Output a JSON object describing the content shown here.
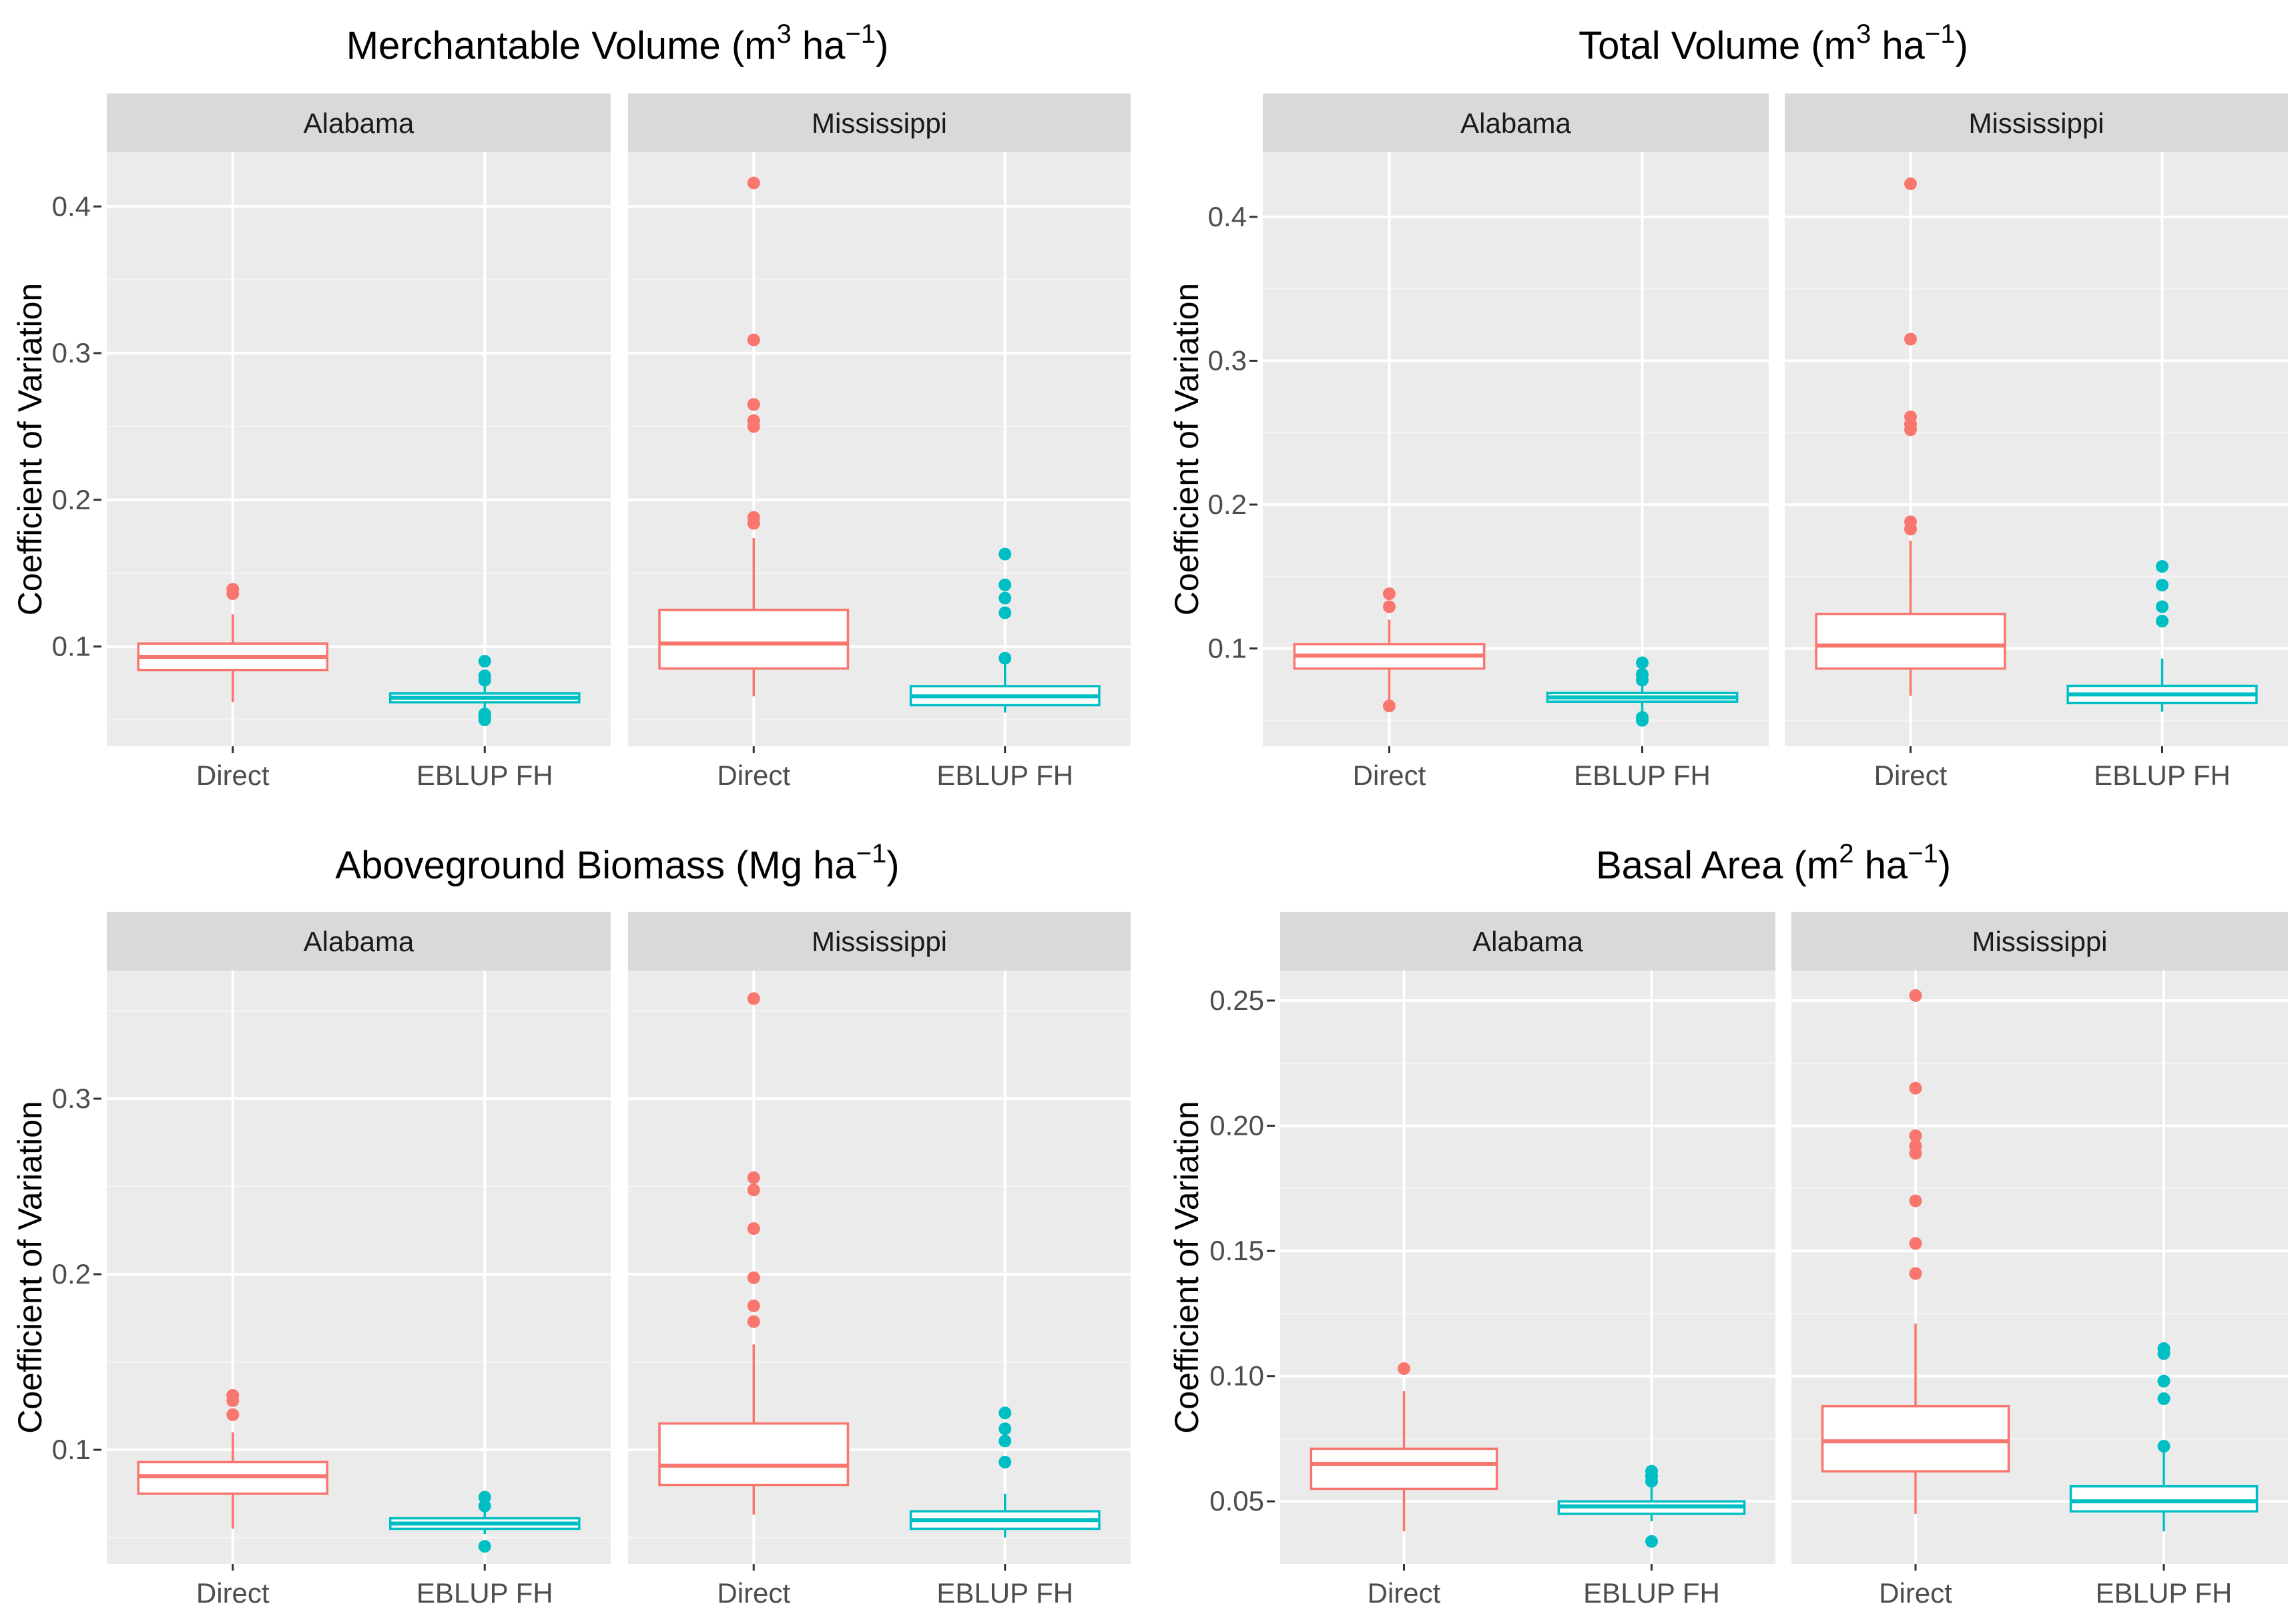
{
  "chart_data": [
    {
      "type": "boxplot",
      "title": "Merchantable Volume (m",
      "title_sup1": "3",
      "title_mid": " ha",
      "title_sup2": "−1",
      "title_end": ")",
      "ylabel": "Coefficient of Variation",
      "ylim": [
        0.032,
        0.437
      ],
      "yticks": [
        0.1,
        0.2,
        0.3,
        0.4
      ],
      "ytick_labels": [
        "0.1",
        "0.2",
        "0.3",
        "0.4"
      ],
      "categories": [
        "Direct",
        "EBLUP FH"
      ],
      "panels": [
        {
          "state": "Alabama",
          "boxes": [
            {
              "category": "Direct",
              "color": "#F8766D",
              "min": 0.062,
              "q1": 0.084,
              "median": 0.093,
              "q3": 0.102,
              "max": 0.122,
              "outliers": [
                0.136,
                0.139
              ]
            },
            {
              "category": "EBLUP FH",
              "color": "#00BFC4",
              "min": 0.056,
              "q1": 0.062,
              "median": 0.065,
              "q3": 0.068,
              "max": 0.074,
              "outliers": [
                0.05,
                0.052,
                0.054,
                0.077,
                0.08,
                0.09
              ]
            }
          ]
        },
        {
          "state": "Mississippi",
          "boxes": [
            {
              "category": "Direct",
              "color": "#F8766D",
              "min": 0.066,
              "q1": 0.085,
              "median": 0.102,
              "q3": 0.125,
              "max": 0.174,
              "outliers": [
                0.184,
                0.188,
                0.25,
                0.254,
                0.265,
                0.309,
                0.416
              ]
            },
            {
              "category": "EBLUP FH",
              "color": "#00BFC4",
              "min": 0.055,
              "q1": 0.06,
              "median": 0.066,
              "q3": 0.073,
              "max": 0.09,
              "outliers": [
                0.092,
                0.123,
                0.133,
                0.142,
                0.163
              ]
            }
          ]
        }
      ]
    },
    {
      "type": "boxplot",
      "title": "Total Volume (m",
      "title_sup1": "3",
      "title_mid": " ha",
      "title_sup2": "−1",
      "title_end": ")",
      "ylabel": "Coefficient of Variation",
      "ylim": [
        0.032,
        0.445
      ],
      "yticks": [
        0.1,
        0.2,
        0.3,
        0.4
      ],
      "ytick_labels": [
        "0.1",
        "0.2",
        "0.3",
        "0.4"
      ],
      "categories": [
        "Direct",
        "EBLUP FH"
      ],
      "panels": [
        {
          "state": "Alabama",
          "boxes": [
            {
              "category": "Direct",
              "color": "#F8766D",
              "min": 0.062,
              "q1": 0.086,
              "median": 0.095,
              "q3": 0.103,
              "max": 0.12,
              "outliers": [
                0.06,
                0.129,
                0.138
              ]
            },
            {
              "category": "EBLUP FH",
              "color": "#00BFC4",
              "min": 0.056,
              "q1": 0.063,
              "median": 0.066,
              "q3": 0.069,
              "max": 0.075,
              "outliers": [
                0.05,
                0.052,
                0.078,
                0.082,
                0.09
              ]
            }
          ]
        },
        {
          "state": "Mississippi",
          "boxes": [
            {
              "category": "Direct",
              "color": "#F8766D",
              "min": 0.067,
              "q1": 0.086,
              "median": 0.102,
              "q3": 0.124,
              "max": 0.175,
              "outliers": [
                0.183,
                0.188,
                0.252,
                0.256,
                0.261,
                0.315,
                0.423
              ]
            },
            {
              "category": "EBLUP FH",
              "color": "#00BFC4",
              "min": 0.056,
              "q1": 0.062,
              "median": 0.068,
              "q3": 0.074,
              "max": 0.093,
              "outliers": [
                0.119,
                0.129,
                0.144,
                0.157
              ]
            }
          ]
        }
      ]
    },
    {
      "type": "boxplot",
      "title": "Aboveground Biomass (Mg ha",
      "title_sup1": "",
      "title_mid": "",
      "title_sup2": "−1",
      "title_end": ")",
      "ylabel": "Coefficient of Variation",
      "ylim": [
        0.035,
        0.373
      ],
      "yticks": [
        0.1,
        0.2,
        0.3
      ],
      "ytick_labels": [
        "0.1",
        "0.2",
        "0.3"
      ],
      "categories": [
        "Direct",
        "EBLUP FH"
      ],
      "panels": [
        {
          "state": "Alabama",
          "boxes": [
            {
              "category": "Direct",
              "color": "#F8766D",
              "min": 0.055,
              "q1": 0.075,
              "median": 0.085,
              "q3": 0.093,
              "max": 0.11,
              "outliers": [
                0.12,
                0.128,
                0.131
              ]
            },
            {
              "category": "EBLUP FH",
              "color": "#00BFC4",
              "min": 0.052,
              "q1": 0.055,
              "median": 0.058,
              "q3": 0.061,
              "max": 0.066,
              "outliers": [
                0.045,
                0.068,
                0.073
              ]
            }
          ]
        },
        {
          "state": "Mississippi",
          "boxes": [
            {
              "category": "Direct",
              "color": "#F8766D",
              "min": 0.063,
              "q1": 0.08,
              "median": 0.091,
              "q3": 0.115,
              "max": 0.16,
              "outliers": [
                0.173,
                0.182,
                0.198,
                0.226,
                0.248,
                0.255,
                0.357
              ]
            },
            {
              "category": "EBLUP FH",
              "color": "#00BFC4",
              "min": 0.05,
              "q1": 0.055,
              "median": 0.06,
              "q3": 0.065,
              "max": 0.075,
              "outliers": [
                0.093,
                0.105,
                0.112,
                0.121
              ]
            }
          ]
        }
      ]
    },
    {
      "type": "boxplot",
      "title": "Basal Area (m",
      "title_sup1": "2",
      "title_mid": " ha",
      "title_sup2": "−1",
      "title_end": ")",
      "ylabel": "Coefficient of Variation",
      "ylim": [
        0.025,
        0.262
      ],
      "yticks": [
        0.05,
        0.1,
        0.15,
        0.2,
        0.25
      ],
      "ytick_labels": [
        "0.05",
        "0.10",
        "0.15",
        "0.20",
        "0.25"
      ],
      "categories": [
        "Direct",
        "EBLUP FH"
      ],
      "panels": [
        {
          "state": "Alabama",
          "boxes": [
            {
              "category": "Direct",
              "color": "#F8766D",
              "min": 0.038,
              "q1": 0.055,
              "median": 0.065,
              "q3": 0.071,
              "max": 0.094,
              "outliers": [
                0.103
              ]
            },
            {
              "category": "EBLUP FH",
              "color": "#00BFC4",
              "min": 0.042,
              "q1": 0.045,
              "median": 0.048,
              "q3": 0.05,
              "max": 0.056,
              "outliers": [
                0.034,
                0.058,
                0.06,
                0.062
              ]
            }
          ]
        },
        {
          "state": "Mississippi",
          "boxes": [
            {
              "category": "Direct",
              "color": "#F8766D",
              "min": 0.045,
              "q1": 0.062,
              "median": 0.074,
              "q3": 0.088,
              "max": 0.121,
              "outliers": [
                0.141,
                0.153,
                0.17,
                0.189,
                0.192,
                0.196,
                0.215,
                0.252
              ]
            },
            {
              "category": "EBLUP FH",
              "color": "#00BFC4",
              "min": 0.038,
              "q1": 0.046,
              "median": 0.05,
              "q3": 0.056,
              "max": 0.07,
              "outliers": [
                0.072,
                0.091,
                0.098,
                0.109,
                0.111
              ]
            }
          ]
        }
      ]
    }
  ]
}
